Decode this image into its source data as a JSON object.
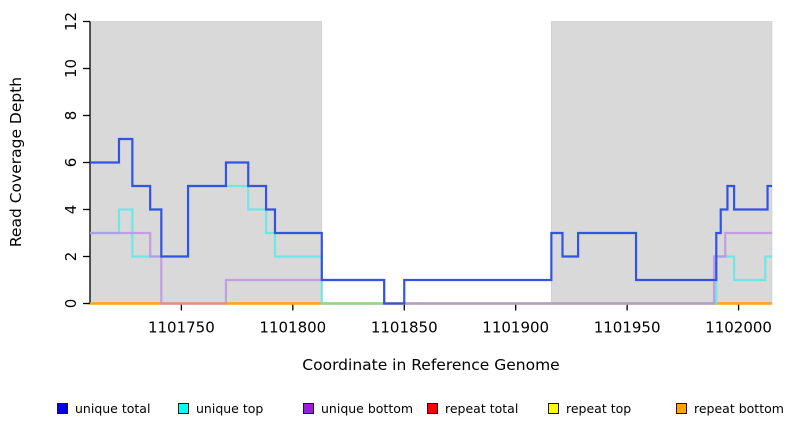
{
  "chart_data": {
    "type": "line",
    "subtype": "step-coverage",
    "title": "",
    "xlabel": "Coordinate in Reference Genome",
    "ylabel": "Read Coverage Depth",
    "xlim": [
      1101709,
      1102015
    ],
    "ylim": [
      0,
      12
    ],
    "x_ticks": [
      1101750,
      1101800,
      1101850,
      1101900,
      1101950,
      1102000
    ],
    "y_ticks": [
      0,
      2,
      4,
      6,
      8,
      10,
      12
    ],
    "grid": false,
    "shade_color": "#d9d9d9",
    "shaded_regions": [
      {
        "x1": 1101709,
        "x2": 1101813
      },
      {
        "x1": 1101916,
        "x2": 1102015
      }
    ],
    "series": [
      {
        "name": "repeat total",
        "line_color": "#ff2222",
        "line_opacity": 1,
        "steps": [
          [
            1101709,
            0
          ]
        ]
      },
      {
        "name": "repeat top",
        "line_color": "#ffff00",
        "line_opacity": 1,
        "steps": [
          [
            1101709,
            0
          ]
        ]
      },
      {
        "name": "repeat bottom",
        "line_color": "#ffa51f",
        "line_opacity": 1,
        "steps": [
          [
            1101709,
            0
          ]
        ]
      },
      {
        "name": "unique top",
        "line_color": "#55e8ea",
        "line_opacity": 0.8,
        "steps": [
          [
            1101709,
            3
          ],
          [
            1101722,
            4
          ],
          [
            1101728,
            2
          ],
          [
            1101753,
            5
          ],
          [
            1101780,
            4
          ],
          [
            1101788,
            3
          ],
          [
            1101792,
            2
          ],
          [
            1101813,
            0
          ],
          [
            1101990,
            2
          ],
          [
            1101998,
            1
          ],
          [
            1102012,
            2
          ]
        ]
      },
      {
        "name": "unique bottom",
        "line_color": "#bd8ce4",
        "line_opacity": 0.78,
        "steps": [
          [
            1101709,
            3
          ],
          [
            1101736,
            2
          ],
          [
            1101741,
            0
          ],
          [
            1101770,
            1
          ],
          [
            1101841,
            0
          ],
          [
            1101989,
            2
          ],
          [
            1101994,
            3
          ]
        ]
      },
      {
        "name": "unique total",
        "line_color": "#3353e3",
        "line_opacity": 1,
        "steps": [
          [
            1101709,
            6
          ],
          [
            1101722,
            7
          ],
          [
            1101728,
            5
          ],
          [
            1101736,
            4
          ],
          [
            1101741,
            2
          ],
          [
            1101753,
            5
          ],
          [
            1101770,
            6
          ],
          [
            1101780,
            5
          ],
          [
            1101788,
            4
          ],
          [
            1101792,
            3
          ],
          [
            1101813,
            1
          ],
          [
            1101841,
            0
          ],
          [
            1101850,
            1
          ],
          [
            1101916,
            3
          ],
          [
            1101921,
            2
          ],
          [
            1101928,
            3
          ],
          [
            1101954,
            1
          ],
          [
            1101990,
            3
          ],
          [
            1101992,
            4
          ],
          [
            1101995,
            5
          ],
          [
            1101998,
            4
          ],
          [
            1102013,
            5
          ]
        ]
      }
    ],
    "legend": [
      {
        "label": "unique total",
        "color": "#0000e6"
      },
      {
        "label": "unique top",
        "color": "#00ffff"
      },
      {
        "label": "unique bottom",
        "color": "#9a1fd8"
      },
      {
        "label": "repeat total",
        "color": "#ff0000"
      },
      {
        "label": "repeat top",
        "color": "#ffff00"
      },
      {
        "label": "repeat bottom",
        "color": "#ffa500"
      }
    ],
    "legend_position": "bottom"
  }
}
